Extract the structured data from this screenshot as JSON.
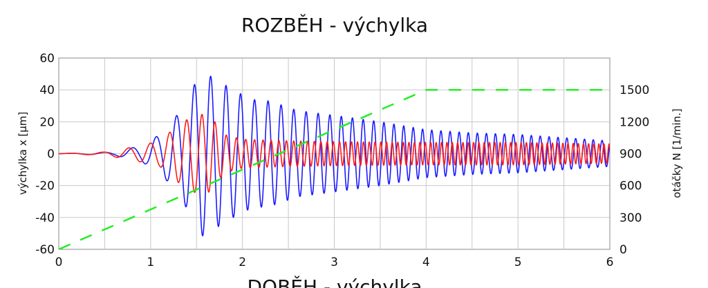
{
  "chart_data": {
    "type": "line",
    "title": "ROZBĚH - výchylka",
    "next_title_partial": "DOBĚH - výchylka",
    "xlabel": "",
    "ylabel_left": "výchylka x [μm]",
    "ylabel_right": "otáčky N [1/min.]",
    "xlim": [
      0,
      6
    ],
    "ylim_left": [
      -60,
      60
    ],
    "ylim_right": [
      0,
      1800
    ],
    "x_ticks": [
      "0",
      "1",
      "2",
      "3",
      "4",
      "5",
      "6"
    ],
    "y_left_ticks": [
      "60",
      "40",
      "20",
      "0",
      "-20",
      "-40",
      "-60"
    ],
    "y_right_ticks": [
      "1500",
      "1200",
      "900",
      "600",
      "300",
      "0"
    ],
    "grid": true,
    "colors": {
      "blue": "#1a1aff",
      "red": "#ff1a1a",
      "green": "#22ee22",
      "grid": "#c8c8c8"
    },
    "series": [
      {
        "color_name": "blue",
        "style": "oscillating line",
        "axis": "left",
        "envelope_points": [
          [
            0,
            0
          ],
          [
            0.6,
            1
          ],
          [
            0.9,
            5
          ],
          [
            1.1,
            12
          ],
          [
            1.3,
            25
          ],
          [
            1.45,
            40
          ],
          [
            1.55,
            52
          ],
          [
            1.7,
            47
          ],
          [
            1.9,
            40
          ],
          [
            2.1,
            34
          ],
          [
            2.3,
            33
          ],
          [
            2.6,
            27
          ],
          [
            3.0,
            24
          ],
          [
            3.5,
            20
          ],
          [
            4.0,
            15
          ],
          [
            4.5,
            13
          ],
          [
            5.0,
            12
          ],
          [
            5.5,
            10
          ],
          [
            6.0,
            8
          ]
        ],
        "frequency_hz_points": [
          [
            0,
            2
          ],
          [
            1,
            4
          ],
          [
            1.5,
            5.5
          ],
          [
            2,
            6.5
          ],
          [
            3,
            8
          ],
          [
            4,
            10
          ],
          [
            6,
            10.5
          ]
        ]
      },
      {
        "color_name": "red",
        "style": "oscillating line",
        "axis": "left",
        "envelope_points": [
          [
            0,
            0
          ],
          [
            0.5,
            1
          ],
          [
            0.8,
            4
          ],
          [
            1.1,
            8
          ],
          [
            1.3,
            18
          ],
          [
            1.5,
            25
          ],
          [
            1.65,
            24
          ],
          [
            1.8,
            12
          ],
          [
            2.0,
            9
          ],
          [
            2.5,
            8
          ],
          [
            3.0,
            7.5
          ],
          [
            4.0,
            7
          ],
          [
            5.0,
            7
          ],
          [
            6.0,
            6
          ]
        ],
        "frequency_hz_points": [
          [
            0,
            2
          ],
          [
            1,
            4.5
          ],
          [
            1.5,
            6
          ],
          [
            2,
            10
          ],
          [
            3,
            15
          ],
          [
            4,
            17
          ],
          [
            6,
            18
          ]
        ]
      },
      {
        "color_name": "green",
        "style": "dashed line",
        "axis": "right",
        "x": [
          0,
          4,
          6
        ],
        "y": [
          0,
          1500,
          1500
        ]
      }
    ]
  }
}
